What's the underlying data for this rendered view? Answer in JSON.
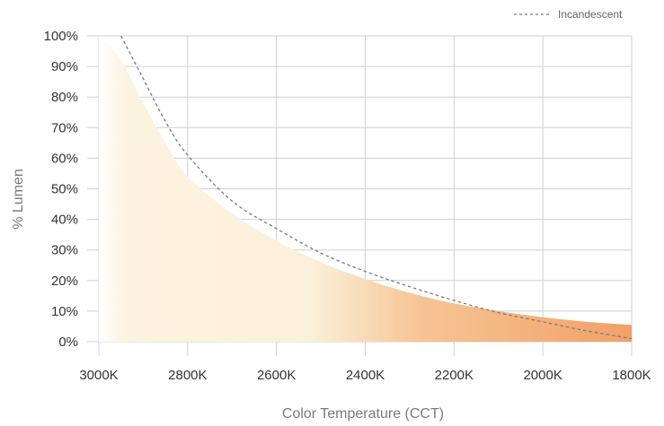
{
  "chart_data": {
    "type": "area",
    "xlabel": "Color Temperature (CCT)",
    "ylabel": "% Lumen",
    "x_ticks": [
      "3000K",
      "2800K",
      "2600K",
      "2400K",
      "2200K",
      "2000K",
      "1800K"
    ],
    "y_ticks": [
      "0%",
      "10%",
      "20%",
      "30%",
      "40%",
      "50%",
      "60%",
      "70%",
      "80%",
      "90%",
      "100%"
    ],
    "xlim": [
      3000,
      1800
    ],
    "ylim": [
      0,
      100
    ],
    "x_reversed": true,
    "grid": true,
    "legend_position": "top-right",
    "series": [
      {
        "name": "",
        "style": "filled-area-gradient",
        "gradient_colors": [
          "#ffffff",
          "#fbf0d9",
          "#f6c594",
          "#f2a068"
        ],
        "x": [
          3000,
          2950,
          2900,
          2850,
          2800,
          2700,
          2600,
          2500,
          2400,
          2300,
          2200,
          2100,
          2000,
          1900,
          1800
        ],
        "y": [
          100,
          92,
          78,
          65,
          54,
          42,
          33,
          26,
          20.5,
          16,
          12.5,
          10,
          8,
          6.5,
          5.5
        ]
      },
      {
        "name": "Incandescent",
        "style": "dashed-line",
        "color": "#7a7a80",
        "x": [
          2950,
          2900,
          2850,
          2800,
          2700,
          2600,
          2500,
          2400,
          2300,
          2200,
          2100,
          2000,
          1900,
          1800
        ],
        "y": [
          100,
          86,
          72,
          61,
          46,
          37,
          29,
          23,
          18,
          13.5,
          9.5,
          6.5,
          3.5,
          1
        ]
      }
    ],
    "colors": {
      "grid": "#d0d0d0",
      "dashed_line": "#7a7a80",
      "gradient_start": "#ffffff",
      "gradient_mid1": "#fbf0d9",
      "gradient_mid2": "#f6c594",
      "gradient_end": "#f2a068"
    }
  }
}
